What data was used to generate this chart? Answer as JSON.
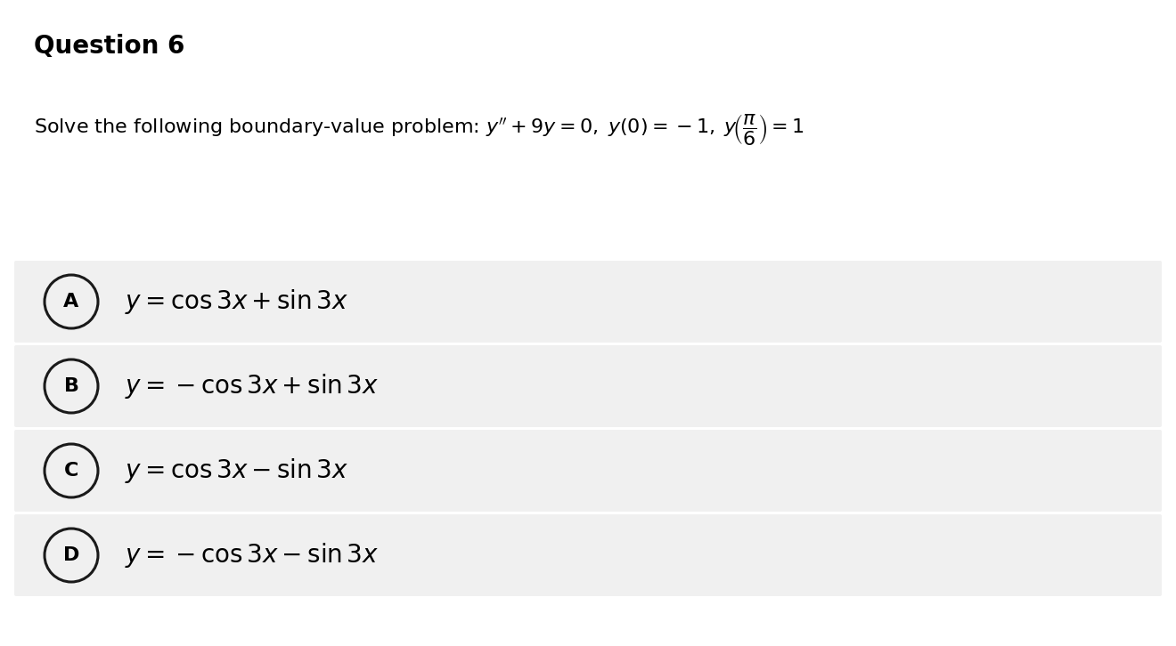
{
  "title": "Question 6",
  "options": [
    {
      "label": "A",
      "formula": "$y=\\cos3x+\\sin3x$"
    },
    {
      "label": "B",
      "formula": "$y=-\\cos3x+\\sin3x$"
    },
    {
      "label": "C",
      "formula": "$y=\\cos3x-\\sin3x$"
    },
    {
      "label": "D",
      "formula": "$y=-\\cos3x-\\sin3x$"
    }
  ],
  "bg_color": "#ffffff",
  "option_bg_color": "#f0f0f0",
  "title_fontsize": 20,
  "problem_fontsize": 16,
  "option_fontsize": 20,
  "label_fontsize": 16
}
